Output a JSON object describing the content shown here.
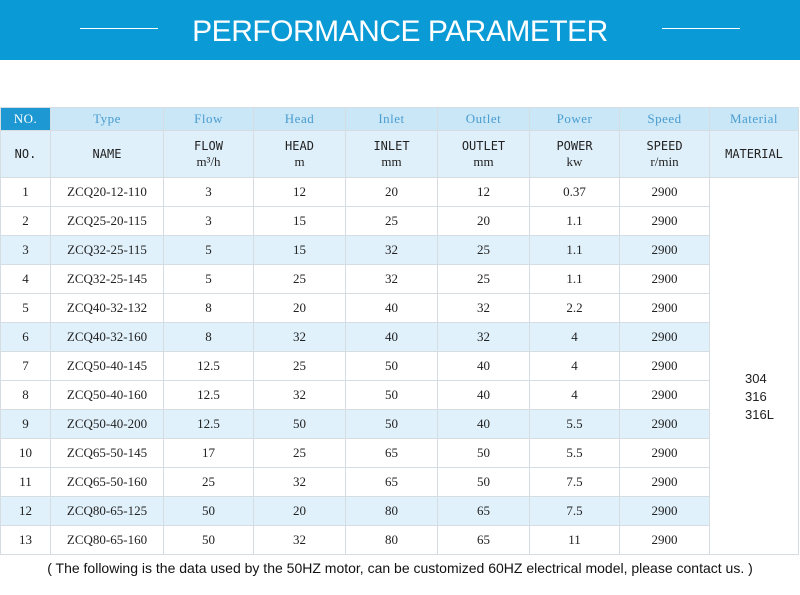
{
  "header": {
    "title": "PERFORMANCE PARAMETER"
  },
  "table": {
    "header_en": [
      "NO.",
      "Type",
      "Flow",
      "Head",
      "Inlet",
      "Outlet",
      "Power",
      "Speed",
      "Material"
    ],
    "header_detail": [
      {
        "label": "NO.",
        "unit": ""
      },
      {
        "label": "NAME",
        "unit": ""
      },
      {
        "label": "FLOW",
        "unit": "m³/h"
      },
      {
        "label": "HEAD",
        "unit": "m"
      },
      {
        "label": "INLET",
        "unit": "mm"
      },
      {
        "label": "OUTLET",
        "unit": "mm"
      },
      {
        "label": "POWER",
        "unit": "kw"
      },
      {
        "label": "SPEED",
        "unit": "r/min"
      },
      {
        "label": "MATERIAL",
        "unit": ""
      }
    ],
    "rows": [
      [
        "1",
        "ZCQ20-12-110",
        "3",
        "12",
        "20",
        "12",
        "0.37",
        "2900"
      ],
      [
        "2",
        "ZCQ25-20-115",
        "3",
        "15",
        "25",
        "20",
        "1.1",
        "2900"
      ],
      [
        "3",
        "ZCQ32-25-115",
        "5",
        "15",
        "32",
        "25",
        "1.1",
        "2900"
      ],
      [
        "4",
        "ZCQ32-25-145",
        "5",
        "25",
        "32",
        "25",
        "1.1",
        "2900"
      ],
      [
        "5",
        "ZCQ40-32-132",
        "8",
        "20",
        "40",
        "32",
        "2.2",
        "2900"
      ],
      [
        "6",
        "ZCQ40-32-160",
        "8",
        "32",
        "40",
        "32",
        "4",
        "2900"
      ],
      [
        "7",
        "ZCQ50-40-145",
        "12.5",
        "25",
        "50",
        "40",
        "4",
        "2900"
      ],
      [
        "8",
        "ZCQ50-40-160",
        "12.5",
        "32",
        "50",
        "40",
        "4",
        "2900"
      ],
      [
        "9",
        "ZCQ50-40-200",
        "12.5",
        "50",
        "50",
        "40",
        "5.5",
        "2900"
      ],
      [
        "10",
        "ZCQ65-50-145",
        "17",
        "25",
        "65",
        "50",
        "5.5",
        "2900"
      ],
      [
        "11",
        "ZCQ65-50-160",
        "25",
        "32",
        "65",
        "50",
        "7.5",
        "2900"
      ],
      [
        "12",
        "ZCQ80-65-125",
        "50",
        "20",
        "80",
        "65",
        "7.5",
        "2900"
      ],
      [
        "13",
        "ZCQ80-65-160",
        "50",
        "32",
        "80",
        "65",
        "11",
        "2900"
      ]
    ],
    "alt_rows": [
      2,
      5,
      8,
      11
    ],
    "material": [
      "304",
      "316",
      "316L"
    ]
  },
  "footer": {
    "note": "( The following is the data used by the 50HZ motor, can be customized 60HZ electrical model, please contact us. )"
  }
}
